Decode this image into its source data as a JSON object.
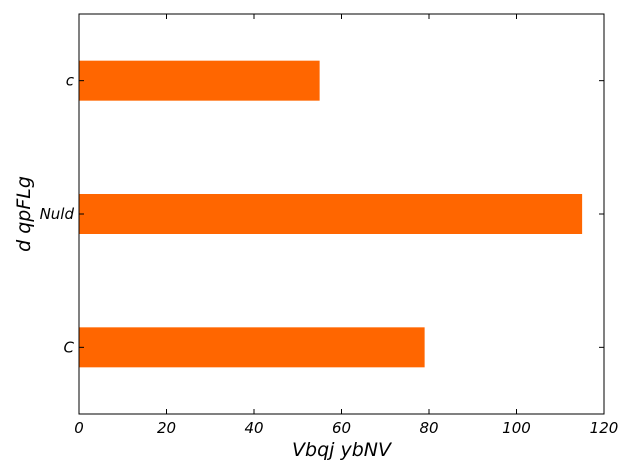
{
  "chart_data": {
    "type": "bar",
    "orientation": "horizontal",
    "categories": [
      "C",
      "Nuld",
      "c"
    ],
    "values": [
      79,
      115,
      55
    ],
    "xlabel": "Vbqj ybNV",
    "ylabel": "d qpFLg",
    "xlim": [
      0,
      120
    ],
    "xticks": [
      0,
      20,
      40,
      60,
      80,
      100,
      120
    ],
    "grid": false,
    "legend": "none",
    "bar_color": "#ff6600"
  }
}
